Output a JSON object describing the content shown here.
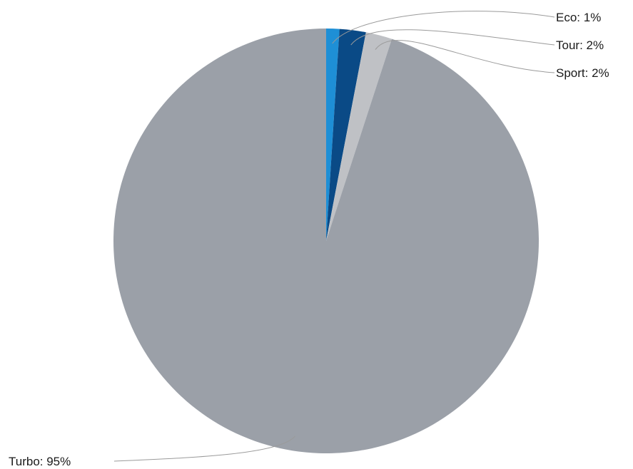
{
  "chart_data": {
    "type": "pie",
    "categories": [
      "Eco",
      "Tour",
      "Sport",
      "Turbo"
    ],
    "values": [
      1,
      2,
      2,
      95
    ],
    "unit": "%",
    "colors": [
      "#1e8fd6",
      "#0a4a86",
      "#bfc1c5",
      "#9ba0a8"
    ],
    "labels": [
      "Eco: 1%",
      "Tour: 2%",
      "Sport: 2%",
      "Turbo: 95%"
    ],
    "start_angle_deg": 0,
    "direction": "clockwise",
    "legend": "none",
    "label_style": "outside-with-leader-lines"
  }
}
